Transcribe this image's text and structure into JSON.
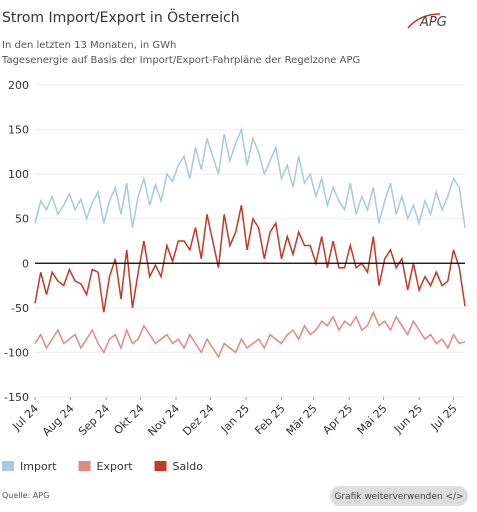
{
  "chart_data": {
    "type": "line",
    "title": "Strom Import/Export in Österreich",
    "subtitle": [
      "In den letzten 13 Monaten, in GWh",
      "Tagesenergie auf Basis der Import/Export-Fahrpläne der Regelzone APG"
    ],
    "logo": "APG",
    "source": "Quelle: APG",
    "button": "Grafik weiterverwenden </>",
    "x": [
      0,
      5,
      10,
      15,
      20,
      25,
      30,
      35,
      40,
      45,
      50,
      55,
      60,
      65,
      70,
      75,
      80,
      85,
      90,
      95,
      100,
      105,
      110,
      115,
      120,
      125,
      130,
      135,
      140,
      145,
      150,
      155,
      160,
      165,
      170,
      175,
      180,
      185,
      190,
      195,
      200,
      205,
      210,
      215,
      220,
      225,
      230,
      235,
      240,
      245,
      250,
      255,
      260,
      265,
      270,
      275,
      280,
      285,
      290,
      295,
      300,
      305,
      310,
      315,
      320,
      325,
      330,
      335,
      340,
      345,
      350,
      355,
      360,
      365,
      370,
      375
    ],
    "xlim": [
      0,
      375
    ],
    "xticks": [
      {
        "value": 0,
        "label": "Jul 24"
      },
      {
        "value": 31,
        "label": "Aug 24"
      },
      {
        "value": 62,
        "label": "Sep 24"
      },
      {
        "value": 92,
        "label": "Okt 24"
      },
      {
        "value": 123,
        "label": "Nov 24"
      },
      {
        "value": 153,
        "label": "Dez 24"
      },
      {
        "value": 184,
        "label": "Jan 25"
      },
      {
        "value": 215,
        "label": "Feb 25"
      },
      {
        "value": 243,
        "label": "Mär 25"
      },
      {
        "value": 274,
        "label": "Apr 25"
      },
      {
        "value": 304,
        "label": "Mai 25"
      },
      {
        "value": 335,
        "label": "Jun 25"
      },
      {
        "value": 365,
        "label": "Jul 25"
      }
    ],
    "ylim": [
      -150,
      200
    ],
    "yticks": [
      -150,
      -100,
      -50,
      0,
      50,
      100,
      150,
      200
    ],
    "grid": true,
    "series": [
      {
        "name": "Import",
        "color": "#a9c9dc",
        "values": [
          45,
          70,
          60,
          75,
          55,
          65,
          78,
          60,
          72,
          50,
          68,
          80,
          45,
          70,
          85,
          55,
          90,
          40,
          75,
          95,
          65,
          88,
          70,
          100,
          92,
          110,
          120,
          95,
          130,
          105,
          140,
          120,
          100,
          145,
          115,
          135,
          150,
          110,
          140,
          125,
          100,
          115,
          130,
          95,
          110,
          85,
          120,
          90,
          100,
          75,
          95,
          65,
          85,
          70,
          60,
          90,
          55,
          75,
          60,
          85,
          45,
          70,
          90,
          55,
          75,
          50,
          65,
          45,
          70,
          55,
          80,
          60,
          75,
          95,
          85,
          40
        ]
      },
      {
        "name": "Export",
        "color": "#e08a85",
        "values": [
          -90,
          -80,
          -95,
          -85,
          -75,
          -90,
          -85,
          -80,
          -95,
          -85,
          -75,
          -90,
          -100,
          -85,
          -80,
          -95,
          -75,
          -90,
          -85,
          -70,
          -80,
          -90,
          -85,
          -80,
          -90,
          -85,
          -95,
          -80,
          -90,
          -100,
          -85,
          -95,
          -105,
          -90,
          -95,
          -100,
          -85,
          -95,
          -90,
          -85,
          -95,
          -80,
          -85,
          -90,
          -80,
          -75,
          -85,
          -70,
          -80,
          -75,
          -65,
          -70,
          -60,
          -75,
          -65,
          -70,
          -60,
          -75,
          -70,
          -55,
          -70,
          -65,
          -75,
          -60,
          -70,
          -80,
          -65,
          -75,
          -85,
          -80,
          -90,
          -85,
          -95,
          -80,
          -90,
          -88
        ]
      },
      {
        "name": "Saldo",
        "color": "#c0392b",
        "values": [
          -45,
          -10,
          -35,
          -10,
          -20,
          -25,
          -7,
          -20,
          -23,
          -35,
          -7,
          -10,
          -55,
          -15,
          5,
          -40,
          15,
          -50,
          -10,
          25,
          -15,
          -2,
          -15,
          20,
          2,
          25,
          25,
          15,
          40,
          5,
          55,
          25,
          -5,
          55,
          20,
          35,
          65,
          15,
          50,
          40,
          5,
          35,
          45,
          5,
          30,
          10,
          35,
          20,
          20,
          0,
          30,
          -5,
          25,
          -5,
          -5,
          20,
          -5,
          0,
          -10,
          30,
          -25,
          5,
          15,
          -5,
          5,
          -30,
          0,
          -30,
          -15,
          -25,
          -10,
          -25,
          -20,
          15,
          -5,
          -48
        ]
      }
    ]
  }
}
